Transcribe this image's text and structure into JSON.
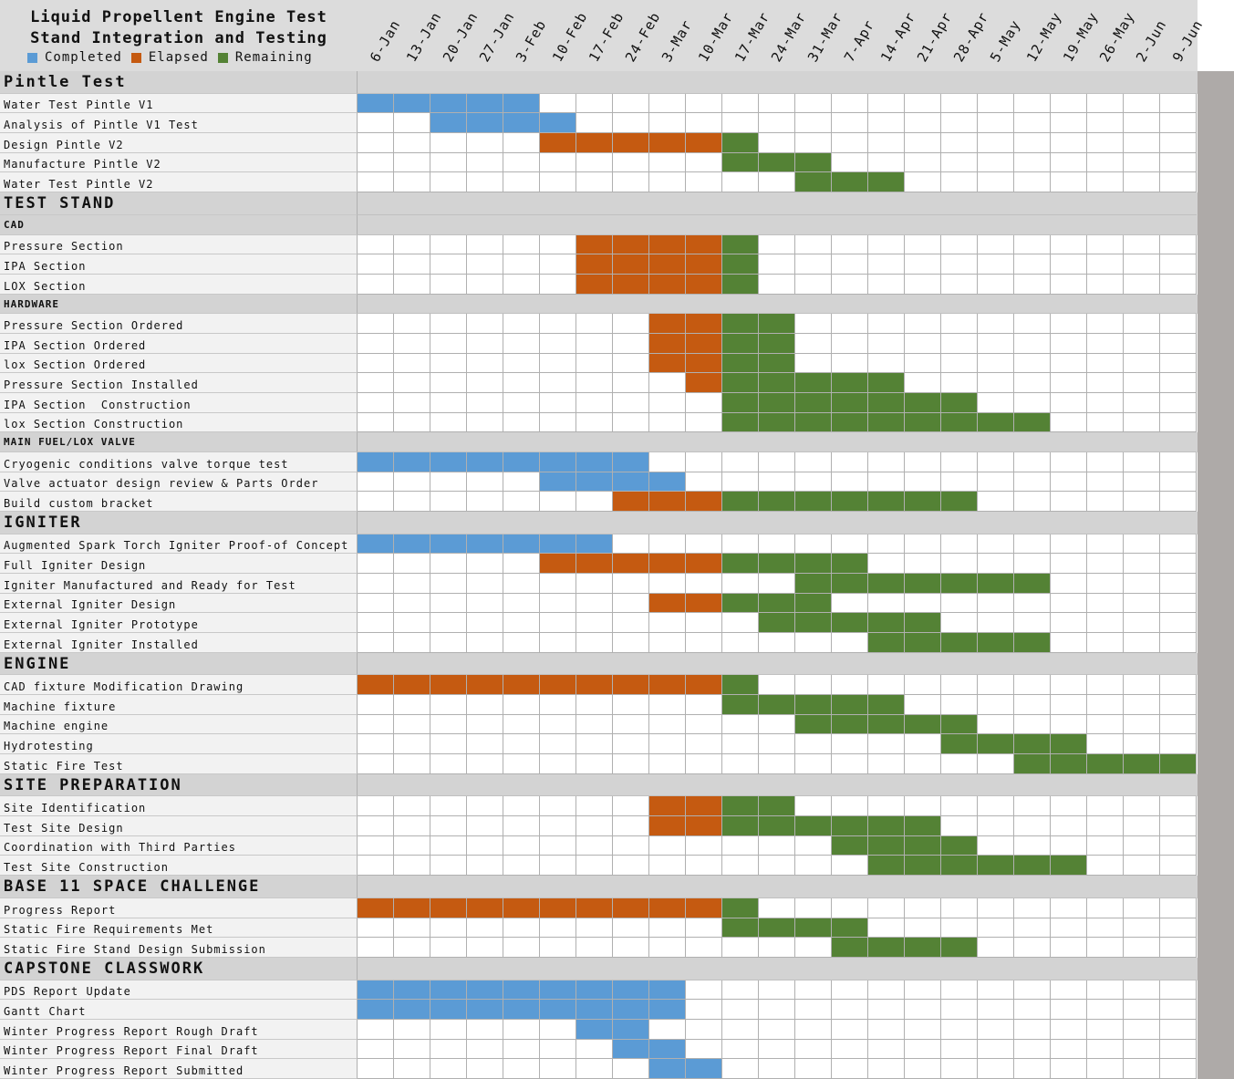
{
  "chart_data": {
    "type": "gantt",
    "title": "Liquid Propellent Engine Test\nStand Integration and Testing",
    "legend": [
      {
        "key": "C",
        "label": "Completed",
        "color": "#5b9bd5"
      },
      {
        "key": "E",
        "label": "Elapsed",
        "color": "#c55a11"
      },
      {
        "key": "R",
        "label": "Remaining",
        "color": "#548235"
      }
    ],
    "weeks": [
      "6-Jan",
      "13-Jan",
      "20-Jan",
      "27-Jan",
      "3-Feb",
      "10-Feb",
      "17-Feb",
      "24-Feb",
      "3-Mar",
      "10-Mar",
      "17-Mar",
      "24-Mar",
      "31-Mar",
      "7-Apr",
      "14-Apr",
      "21-Apr",
      "28-Apr",
      "5-May",
      "12-May",
      "19-May",
      "26-May",
      "2-Jun",
      "9-Jun"
    ],
    "rows": [
      {
        "kind": "section",
        "label": "Pintle Test"
      },
      {
        "kind": "task",
        "label": "Water Test Pintle V1",
        "cells": "CCCCC.................."
      },
      {
        "kind": "task",
        "label": "Analysis of Pintle V1 Test",
        "cells": "..CCCC................."
      },
      {
        "kind": "task",
        "label": "Design Pintle V2",
        "cells": ".....EEEEER............"
      },
      {
        "kind": "task",
        "label": "Manufacture Pintle V2",
        "cells": "..........RRR.........."
      },
      {
        "kind": "task",
        "label": "Water Test Pintle V2",
        "cells": "............RRR........"
      },
      {
        "kind": "section",
        "label": "TEST STAND"
      },
      {
        "kind": "subsection",
        "label": "CAD"
      },
      {
        "kind": "task",
        "label": "Pressure Section",
        "cells": "......EEEER............"
      },
      {
        "kind": "task",
        "label": "IPA Section",
        "cells": "......EEEER............"
      },
      {
        "kind": "task",
        "label": "LOX Section",
        "cells": "......EEEER............"
      },
      {
        "kind": "subsection",
        "label": "HARDWARE"
      },
      {
        "kind": "task",
        "label": "Pressure Section Ordered",
        "cells": "........EERR..........."
      },
      {
        "kind": "task",
        "label": "IPA Section Ordered",
        "cells": "........EERR..........."
      },
      {
        "kind": "task",
        "label": "lox Section Ordered",
        "cells": "........EERR..........."
      },
      {
        "kind": "task",
        "label": "Pressure Section Installed",
        "cells": ".........ERRRRR........"
      },
      {
        "kind": "task",
        "label": "IPA Section  Construction",
        "cells": "..........RRRRRRR......"
      },
      {
        "kind": "task",
        "label": "lox Section Construction",
        "cells": "..........RRRRRRRRR...."
      },
      {
        "kind": "subsection",
        "label": "MAIN FUEL/LOX VALVE"
      },
      {
        "kind": "task",
        "label": "Cryogenic conditions valve torque test",
        "cells": "CCCCCCCC..............."
      },
      {
        "kind": "task",
        "label": "Valve actuator design review & Parts Order",
        "cells": ".....CCCC.............."
      },
      {
        "kind": "task",
        "label": "Build custom bracket",
        "cells": ".......EEERRRRRRR......"
      },
      {
        "kind": "section",
        "label": "IGNITER"
      },
      {
        "kind": "task",
        "label": "Augmented Spark Torch Igniter Proof-of Concept",
        "cells": "CCCCCCC................"
      },
      {
        "kind": "task",
        "label": "Full Igniter Design",
        "cells": ".....EEEEERRRR........."
      },
      {
        "kind": "task",
        "label": "Igniter Manufactured and Ready for Test",
        "cells": "............RRRRRRR...."
      },
      {
        "kind": "task",
        "label": "External Igniter Design",
        "cells": "........EERRR.........."
      },
      {
        "kind": "task",
        "label": "External Igniter Prototype",
        "cells": "...........RRRRR......."
      },
      {
        "kind": "task",
        "label": "External Igniter Installed",
        "cells": "..............RRRRR...."
      },
      {
        "kind": "section",
        "label": "ENGINE"
      },
      {
        "kind": "task",
        "label": "CAD fixture Modification Drawing",
        "cells": "EEEEEEEEEER............"
      },
      {
        "kind": "task",
        "label": "Machine fixture",
        "cells": "..........RRRRR........"
      },
      {
        "kind": "task",
        "label": "Machine engine",
        "cells": "............RRRRR......"
      },
      {
        "kind": "task",
        "label": "Hydrotesting",
        "cells": "................RRRR..."
      },
      {
        "kind": "task",
        "label": "Static Fire Test",
        "cells": "..................RRRRR"
      },
      {
        "kind": "section",
        "label": "SITE PREPARATION"
      },
      {
        "kind": "task",
        "label": "Site Identification",
        "cells": "........EERR..........."
      },
      {
        "kind": "task",
        "label": "Test Site Design",
        "cells": "........EERRRRRR......."
      },
      {
        "kind": "task",
        "label": "Coordination with Third Parties",
        "cells": ".............RRRR......"
      },
      {
        "kind": "task",
        "label": "Test Site Construction",
        "cells": "..............RRRRRR..."
      },
      {
        "kind": "section",
        "label": "BASE 11 SPACE CHALLENGE"
      },
      {
        "kind": "task",
        "label": "Progress Report",
        "cells": "EEEEEEEEEER............"
      },
      {
        "kind": "task",
        "label": "Static Fire Requirements Met",
        "cells": "..........RRRR........."
      },
      {
        "kind": "task",
        "label": "Static Fire Stand Design Submission",
        "cells": ".............RRRR......"
      },
      {
        "kind": "section",
        "label": "CAPSTONE CLASSWORK"
      },
      {
        "kind": "task",
        "label": "PDS Report Update",
        "cells": "CCCCCCCCC.............."
      },
      {
        "kind": "task",
        "label": "Gantt Chart",
        "cells": "CCCCCCCCC.............."
      },
      {
        "kind": "task",
        "label": "Winter Progress Report Rough Draft",
        "cells": "......CC..............."
      },
      {
        "kind": "task",
        "label": "Winter Progress Report Final Draft",
        "cells": ".......CC.............."
      },
      {
        "kind": "task",
        "label": "Winter Progress Report Submitted",
        "cells": "........CC............."
      }
    ]
  }
}
